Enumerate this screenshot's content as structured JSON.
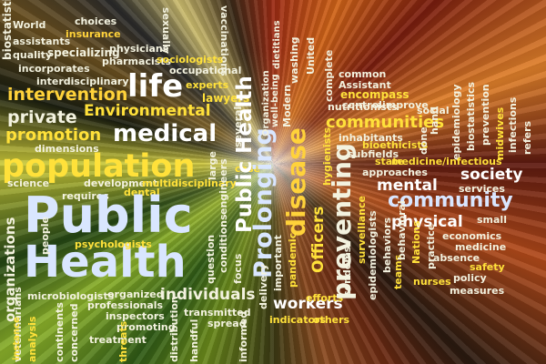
{
  "words": [
    "biostatistics",
    "World",
    "assistants",
    "insurance",
    "choices",
    "sexually",
    "vaccinations",
    "quality",
    "specializing",
    "physicians",
    "pharmacists",
    "sociologists",
    "incorporates",
    "occupational",
    "interdisciplinary",
    "life",
    "experts",
    "intervention",
    "lawyers",
    "private",
    "Environmental",
    "promotion",
    "medical",
    "dimensions",
    "population",
    "science",
    "development",
    "multidisciplinary",
    "requires",
    "dental",
    "Public",
    "Health",
    "psychologists",
    "organizations",
    "people",
    "microbiologists",
    "organized",
    "professionals",
    "inspectors",
    "promoting",
    "individuals",
    "transmitted",
    "spread",
    "veterinarians",
    "analysis",
    "continents",
    "concerned",
    "treatment",
    "threats",
    "distribution",
    "handful",
    "informed",
    "question",
    "conditions",
    "focus",
    "engineers",
    "several",
    "large",
    "case",
    "Prolonging",
    "disease",
    "Public Health",
    "Organization",
    "Modern",
    "washing",
    "United",
    "dietitians",
    "well-being",
    "important",
    "delivery",
    "pandemic",
    "indicators",
    "workers",
    "efforts",
    "others",
    "Officers",
    "preventing",
    "common",
    "Assistant",
    "encompass",
    "nutritionists",
    "complete",
    "control",
    "improve",
    "social",
    "communities",
    "inhabitants",
    "subfields",
    "bioethicists",
    "approaches",
    "society",
    "mental",
    "community",
    "physical",
    "small",
    "economics",
    "medicine",
    "absence",
    "safety",
    "policy",
    "measures",
    "nurses",
    "teams",
    "behaviors",
    "behavioral",
    "Nations",
    "practice",
    "surveillance",
    "epidemiologists",
    "condoms",
    "hygienists",
    "epidemiology",
    "biostatistics",
    "prevention",
    "hand",
    "done",
    "midwives",
    "infections",
    "refers",
    "state",
    "medicine/infectious",
    "services",
    "instance"
  ]
}
